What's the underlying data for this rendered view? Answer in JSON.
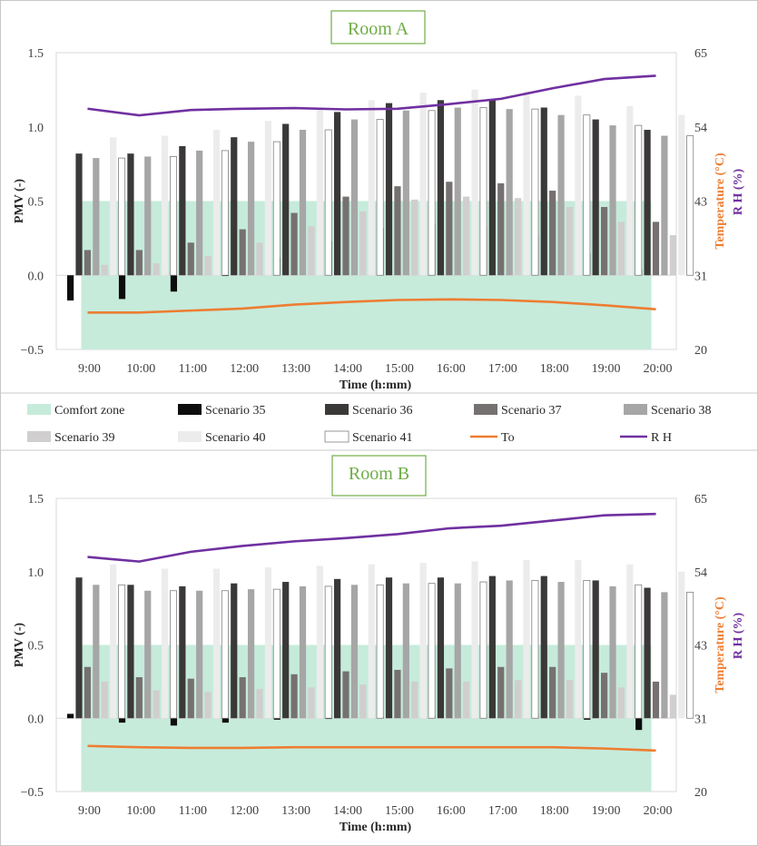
{
  "chart_data": {
    "type": "bar",
    "colors": {
      "comfort_zone": "#c6ebdb",
      "scenario_35": "#0d0d0d",
      "scenario_36": "#3b3838",
      "scenario_37": "#767171",
      "scenario_38": "#a6a6a6",
      "scenario_39": "#d0cece",
      "scenario_40": "#ececec",
      "scenario_41": "#ffffff",
      "to": "#ed7d31",
      "rh": "#7030a0",
      "title": "#70ad47",
      "right_axis_temp": "#ed7d31",
      "right_axis_rh": "#7030a0"
    },
    "legend": {
      "comfort_zone": "Comfort zone",
      "scenario_35": "Scenario 35",
      "scenario_36": "Scenario 36",
      "scenario_37": "Scenario 37",
      "scenario_38": "Scenario 38",
      "scenario_39": "Scenario 39",
      "scenario_40": "Scenario 40",
      "scenario_41": "Scenario 41",
      "to": "To",
      "rh": "R H"
    },
    "panels": [
      {
        "title": "Room A",
        "xlabel": "Time (h:mm)",
        "ylabel": "PMV (-)",
        "y2label_temp": "Temperature (°C)",
        "y2label_rh": "R H (%)",
        "ylim": [
          -0.5,
          1.5
        ],
        "y2lim": [
          20,
          65
        ],
        "yticks": [
          "1.5",
          "1.0",
          "0.5",
          "0.0",
          "−0.5"
        ],
        "y2ticks": [
          "65",
          "54",
          "43",
          "31",
          "20"
        ],
        "comfort_zone": [
          -0.5,
          0.5
        ],
        "categories": [
          "9:00",
          "10:00",
          "11:00",
          "12:00",
          "13:00",
          "14:00",
          "15:00",
          "16:00",
          "17:00",
          "18:00",
          "19:00",
          "20:00"
        ],
        "series": [
          {
            "name": "Scenario 35",
            "values": [
              -0.17,
              -0.16,
              -0.11,
              0.0,
              0.12,
              0.23,
              0.32,
              0.35,
              0.33,
              0.27,
              0.15,
              0.04
            ]
          },
          {
            "name": "Scenario 36",
            "values": [
              0.82,
              0.82,
              0.87,
              0.93,
              1.02,
              1.1,
              1.16,
              1.18,
              1.18,
              1.13,
              1.05,
              0.98
            ]
          },
          {
            "name": "Scenario 37",
            "values": [
              0.17,
              0.17,
              0.22,
              0.31,
              0.42,
              0.53,
              0.6,
              0.63,
              0.62,
              0.57,
              0.46,
              0.36
            ]
          },
          {
            "name": "Scenario 38",
            "values": [
              0.79,
              0.8,
              0.84,
              0.9,
              0.98,
              1.05,
              1.11,
              1.13,
              1.12,
              1.08,
              1.01,
              0.94
            ]
          },
          {
            "name": "Scenario 39",
            "values": [
              0.07,
              0.08,
              0.13,
              0.22,
              0.33,
              0.43,
              0.51,
              0.53,
              0.52,
              0.46,
              0.36,
              0.27
            ]
          },
          {
            "name": "Scenario 40",
            "values": [
              0.93,
              0.94,
              0.98,
              1.04,
              1.12,
              1.18,
              1.23,
              1.25,
              1.24,
              1.21,
              1.14,
              1.08
            ]
          },
          {
            "name": "Scenario 41",
            "values": [
              0.79,
              0.8,
              0.84,
              0.9,
              0.98,
              1.05,
              1.11,
              1.13,
              1.12,
              1.08,
              1.01,
              0.94
            ]
          }
        ],
        "to": [
          25.6,
          25.6,
          25.9,
          26.2,
          26.8,
          27.2,
          27.5,
          27.6,
          27.5,
          27.2,
          26.7,
          26.1
        ],
        "rh": [
          56.5,
          55.5,
          56.3,
          56.5,
          56.6,
          56.4,
          56.5,
          57.2,
          58.0,
          59.6,
          61.0,
          61.5
        ]
      },
      {
        "title": "Room B",
        "xlabel": "Time (h:mm)",
        "ylabel": "PMV (-)",
        "y2label_temp": "Temperature (°C)",
        "y2label_rh": "R H (%)",
        "ylim": [
          -0.5,
          1.5
        ],
        "y2lim": [
          20,
          65
        ],
        "yticks": [
          "1.5",
          "1.0",
          "0.5",
          "0.0",
          "−0.5"
        ],
        "y2ticks": [
          "65",
          "54",
          "43",
          "31",
          "20"
        ],
        "comfort_zone": [
          -0.5,
          0.5
        ],
        "categories": [
          "9:00",
          "10:00",
          "11:00",
          "12:00",
          "13:00",
          "14:00",
          "15:00",
          "16:00",
          "17:00",
          "18:00",
          "19:00",
          "20:00"
        ],
        "series": [
          {
            "name": "Scenario 35",
            "values": [
              0.03,
              -0.03,
              -0.05,
              -0.03,
              -0.01,
              0.0,
              0.01,
              0.02,
              0.03,
              0.03,
              -0.01,
              -0.08
            ]
          },
          {
            "name": "Scenario 36",
            "values": [
              0.96,
              0.91,
              0.9,
              0.92,
              0.93,
              0.95,
              0.96,
              0.96,
              0.97,
              0.97,
              0.94,
              0.89
            ]
          },
          {
            "name": "Scenario 37",
            "values": [
              0.35,
              0.28,
              0.27,
              0.28,
              0.3,
              0.32,
              0.33,
              0.34,
              0.35,
              0.35,
              0.31,
              0.25
            ]
          },
          {
            "name": "Scenario 38",
            "values": [
              0.91,
              0.87,
              0.87,
              0.88,
              0.9,
              0.91,
              0.92,
              0.92,
              0.94,
              0.93,
              0.9,
              0.86
            ]
          },
          {
            "name": "Scenario 39",
            "values": [
              0.25,
              0.19,
              0.18,
              0.2,
              0.21,
              0.23,
              0.25,
              0.25,
              0.26,
              0.26,
              0.21,
              0.16
            ]
          },
          {
            "name": "Scenario 40",
            "values": [
              1.05,
              1.02,
              1.02,
              1.03,
              1.04,
              1.05,
              1.06,
              1.07,
              1.08,
              1.08,
              1.05,
              1.0
            ]
          },
          {
            "name": "Scenario 41",
            "values": [
              0.91,
              0.87,
              0.87,
              0.88,
              0.9,
              0.91,
              0.92,
              0.93,
              0.94,
              0.94,
              0.91,
              0.86
            ]
          }
        ],
        "to": [
          27.0,
          26.8,
          26.7,
          26.7,
          26.8,
          26.8,
          26.8,
          26.8,
          26.8,
          26.8,
          26.6,
          26.3
        ],
        "rh": [
          56.0,
          55.3,
          56.8,
          57.7,
          58.4,
          58.9,
          59.5,
          60.4,
          60.8,
          61.6,
          62.4,
          62.6
        ]
      }
    ]
  }
}
